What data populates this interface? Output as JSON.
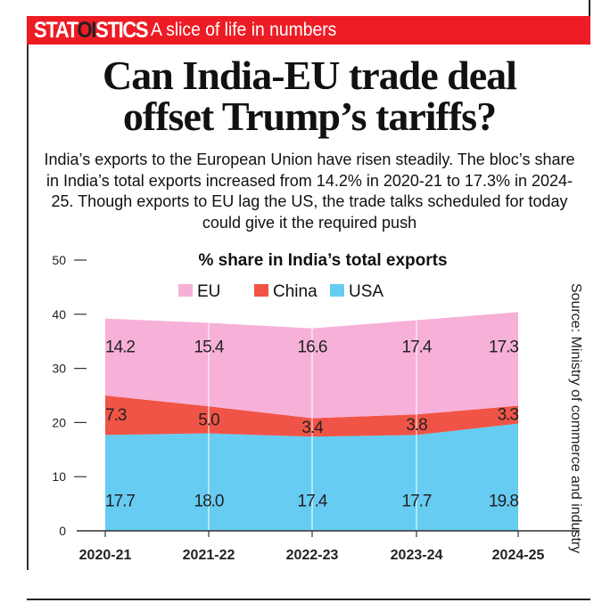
{
  "header": {
    "brand_parts": [
      "STAT",
      "OI",
      "STICS"
    ],
    "tagline": "A slice of life in numbers"
  },
  "headline": {
    "line1": "Can India-EU trade deal",
    "line2": "offset Trump’s tariffs?"
  },
  "intro": "India’s exports to the European Union have risen steadily. The bloc’s share in India’s total exports increased from 14.2% in 2020-21 to 17.3% in 2024-25. Though exports to EU lag the US, the trade talks scheduled for today could give it the required push",
  "source": "Source: Ministry of commerce and industry",
  "colors": {
    "banner": "#ed1c24",
    "eu": "#f7b0d8",
    "china": "#f05446",
    "usa": "#66ccf2"
  },
  "chart_data": {
    "type": "area",
    "stacked": true,
    "title": "% share in India’s total exports",
    "categories": [
      "2020-21",
      "2021-22",
      "2022-23",
      "2023-24",
      "2024-25"
    ],
    "series": [
      {
        "name": "USA",
        "color": "#66ccf2",
        "values": [
          17.7,
          18.0,
          17.4,
          17.7,
          19.8
        ],
        "labels": [
          "17.7",
          "18.0",
          "17.4",
          "17.7",
          "19.8"
        ]
      },
      {
        "name": "China",
        "color": "#f05446",
        "values": [
          7.3,
          5.0,
          3.4,
          3.8,
          3.3
        ],
        "labels": [
          "7.3",
          "5.0",
          "3.4",
          "3.8",
          "3.3"
        ]
      },
      {
        "name": "EU",
        "color": "#f7b0d8",
        "values": [
          14.2,
          15.4,
          16.6,
          17.4,
          17.3
        ],
        "labels": [
          "14.2",
          "15.4",
          "16.6",
          "17.4",
          "17.3"
        ]
      }
    ],
    "legend_order": [
      "EU",
      "China",
      "USA"
    ],
    "legend_placement": "top-center",
    "ylim": [
      0,
      50
    ],
    "yticks": [
      "0",
      "10",
      "20",
      "30",
      "40",
      "50"
    ],
    "grid": false
  }
}
